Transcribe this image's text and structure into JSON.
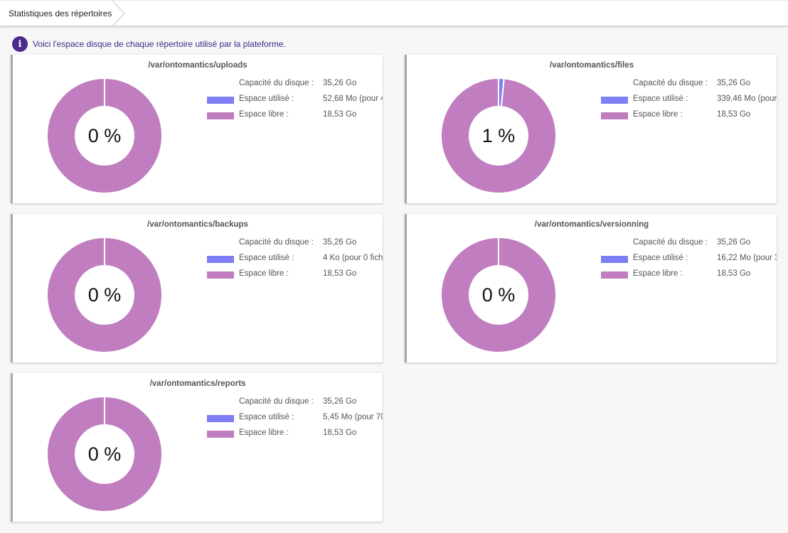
{
  "breadcrumb": {
    "title": "Statistiques des répertoires"
  },
  "info": {
    "text": "Voici l'espace disque de chaque répertoire utilisé par la plateforme."
  },
  "legend_labels": {
    "capacity": "Capacité du disque :",
    "used": "Espace utilisé :",
    "free": "Espace libre :"
  },
  "colors": {
    "used": "#7e7ef5",
    "free": "#c07ec0",
    "info_icon": "#4a2b8c"
  },
  "cards": [
    {
      "title": "/var/ontomantics/uploads",
      "percent_label": "0 %",
      "used_fraction": 0.0,
      "capacity": "35,26 Go",
      "used": "52,68 Mo (pour 4",
      "free": "18,53 Go"
    },
    {
      "title": "/var/ontomantics/files",
      "percent_label": "1 %",
      "used_fraction": 0.015,
      "capacity": "35,26 Go",
      "used": "339,46 Mo (pour",
      "free": "18,53 Go"
    },
    {
      "title": "/var/ontomantics/backups",
      "percent_label": "0 %",
      "used_fraction": 0.0,
      "capacity": "35,26 Go",
      "used": "4 Ko (pour 0 fich",
      "free": "18,53 Go"
    },
    {
      "title": "/var/ontomantics/versionning",
      "percent_label": "0 %",
      "used_fraction": 0.0,
      "capacity": "35,26 Go",
      "used": "16,22 Mo (pour 3",
      "free": "18,53 Go"
    },
    {
      "title": "/var/ontomantics/reports",
      "percent_label": "0 %",
      "used_fraction": 0.0,
      "capacity": "35,26 Go",
      "used": "5,45 Mo (pour 70",
      "free": "18,53 Go"
    }
  ]
}
